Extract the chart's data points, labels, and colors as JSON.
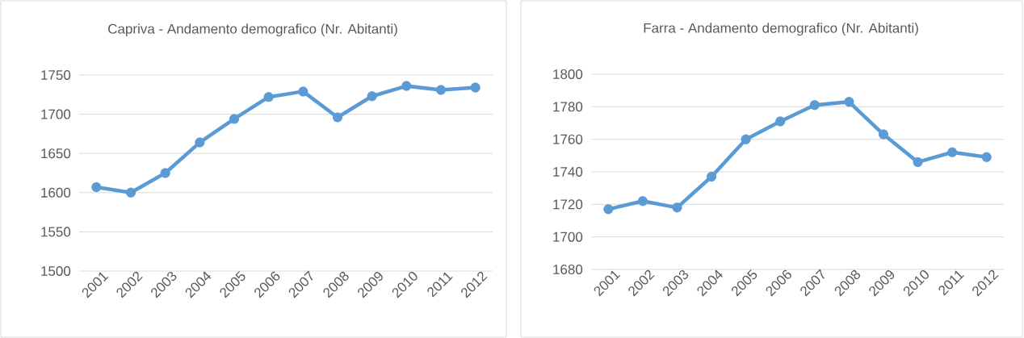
{
  "chart_data": [
    {
      "type": "line",
      "title": "Capriva - Andamento demografico (Nr. Abitanti)",
      "categories": [
        "2001",
        "2002",
        "2003",
        "2004",
        "2005",
        "2006",
        "2007",
        "2008",
        "2009",
        "2010",
        "2011",
        "2012"
      ],
      "values": [
        1607,
        1600,
        1625,
        1664,
        1694,
        1722,
        1729,
        1696,
        1723,
        1736,
        1731,
        1734
      ],
      "color": "#5b9bd5",
      "ylim": [
        1500,
        1750
      ],
      "yticks": [
        1500,
        1550,
        1600,
        1650,
        1700,
        1750
      ],
      "grid": "y",
      "marker": "circle"
    },
    {
      "type": "line",
      "title": "Farra - Andamento demografico (Nr. Abitanti)",
      "categories": [
        "2001",
        "2002",
        "2003",
        "2004",
        "2005",
        "2006",
        "2007",
        "2008",
        "2009",
        "2010",
        "2011",
        "2012"
      ],
      "values": [
        1717,
        1722,
        1718,
        1737,
        1760,
        1771,
        1781,
        1783,
        1763,
        1746,
        1752,
        1749
      ],
      "color": "#5b9bd5",
      "ylim": [
        1680,
        1800
      ],
      "yticks": [
        1680,
        1700,
        1720,
        1740,
        1760,
        1780,
        1800
      ],
      "grid": "y",
      "marker": "circle"
    }
  ]
}
